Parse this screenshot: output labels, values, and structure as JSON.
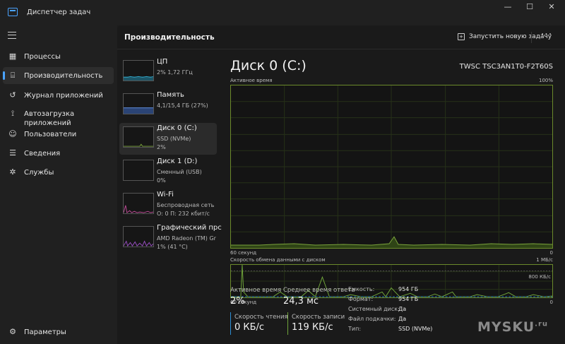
{
  "window": {
    "title": "Диспетчер задач",
    "controls": {
      "minimize": "—",
      "maximize": "☐",
      "close": "✕"
    }
  },
  "sidebar": {
    "items": [
      {
        "label": "Процессы",
        "icon": "grid-icon"
      },
      {
        "label": "Производительность",
        "icon": "chart-icon",
        "active": true
      },
      {
        "label": "Журнал приложений",
        "icon": "history-icon"
      },
      {
        "label": "Автозагрузка приложений",
        "line1": "Автозагрузка",
        "line2": "приложений",
        "icon": "startup-icon"
      },
      {
        "label": "Пользователи",
        "icon": "users-icon"
      },
      {
        "label": "Сведения",
        "icon": "list-icon"
      },
      {
        "label": "Службы",
        "icon": "puzzle-icon"
      }
    ],
    "settings_label": "Параметры"
  },
  "header": {
    "title": "Производительность",
    "run_task_label": "Запустить новую задачу",
    "more": "···"
  },
  "devices": [
    {
      "name": "ЦП",
      "sub1": "2%  1,72 ГГц",
      "sub2": "",
      "color": "#31a8c9"
    },
    {
      "name": "Память",
      "sub1": "4,1/15,4 ГБ (27%)",
      "sub2": "",
      "color": "#5e8ad6"
    },
    {
      "name": "Диск 0 (C:)",
      "sub1": "SSD (NVMe)",
      "sub2": "2%",
      "color": "#7aa33b",
      "active": true
    },
    {
      "name": "Диск 1 (D:)",
      "sub1": "Сменный (USB)",
      "sub2": "0%",
      "color": "#7aa33b"
    },
    {
      "name": "Wi-Fi",
      "sub1": "Беспроводная сеть",
      "sub2": "О: 0 П: 232 кбит/с",
      "color": "#c24c9a"
    },
    {
      "name": "Графический прс",
      "sub1": "AMD Radeon (TM) Grap",
      "sub2": "1% (41 °C)",
      "color": "#9a4fc4"
    }
  ],
  "detail": {
    "title": "Диск 0 (C:)",
    "model": "TWSC TSC3AN1T0-F2T60S",
    "graph1": {
      "label": "Активное время",
      "max": "100%",
      "xlabel": "60 секунд",
      "xmin": "0"
    },
    "graph2": {
      "label": "Скорость обмена данными с диском",
      "max": "1 МБ/с",
      "mid": "800 КБ/с",
      "xlabel": "60 секунд",
      "xmin": "0"
    },
    "stats": {
      "active_time_label": "Активное время",
      "active_time_value": "2%",
      "avg_response_label": "Среднее время ответа",
      "avg_response_value": "24,3 мс",
      "read_speed_label": "Скорость чтения",
      "read_speed_value": "0 КБ/с",
      "write_speed_label": "Скорость записи",
      "write_speed_value": "119 КБ/с"
    },
    "properties": [
      {
        "key": "Емкость:",
        "value": "954 ГБ"
      },
      {
        "key": "Формат:",
        "value": "954 ГБ"
      },
      {
        "key": "Системный диск:",
        "value": "Да"
      },
      {
        "key": "Файл подкачки:",
        "value": "Да"
      },
      {
        "key": "Тип:",
        "value": "SSD (NVMe)"
      }
    ]
  },
  "watermark": {
    "text": "MYSKU",
    "suffix": ".ru"
  },
  "colors": {
    "accent": "#4aa3ff",
    "disk": "#7aa33b",
    "read": "#2d8fd6",
    "write": "#6fa33a"
  }
}
